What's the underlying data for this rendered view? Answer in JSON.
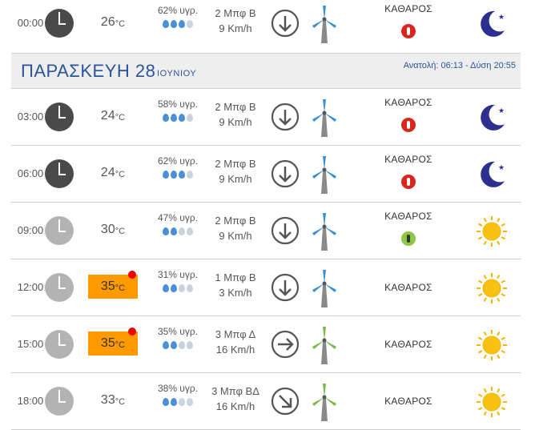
{
  "day_header": {
    "day": "ΠΑΡΑΣΚΕΥΗ 28",
    "month": "ΙΟΥΝΙΟΥ",
    "sunrise_sunset": "Ανατολή: 06:13 - Δύση 20:55"
  },
  "rows": [
    {
      "time": "00:00",
      "clock": "dark",
      "temp": "26",
      "unit": "°C",
      "hot": false,
      "humidity": "62% υγρ.",
      "drops": 3,
      "wind_force": "2 Μπφ Β",
      "wind_speed": "9 Km/h",
      "direction": "down-arrow-icon",
      "turbine": "blue",
      "condition": "ΚΑΘΑΡΟΣ",
      "mosquito": "red",
      "sky": "moon"
    },
    {
      "time": "03:00",
      "clock": "dark",
      "temp": "24",
      "unit": "°C",
      "hot": false,
      "humidity": "58% υγρ.",
      "drops": 3,
      "wind_force": "2 Μπφ Β",
      "wind_speed": "9 Km/h",
      "direction": "down-arrow-icon",
      "turbine": "blue",
      "condition": "ΚΑΘΑΡΟΣ",
      "mosquito": "red",
      "sky": "moon"
    },
    {
      "time": "06:00",
      "clock": "dark",
      "temp": "24",
      "unit": "°C",
      "hot": false,
      "humidity": "62% υγρ.",
      "drops": 3,
      "wind_force": "2 Μπφ Β",
      "wind_speed": "9 Km/h",
      "direction": "down-arrow-icon",
      "turbine": "blue",
      "condition": "ΚΑΘΑΡΟΣ",
      "mosquito": "red",
      "sky": "moon"
    },
    {
      "time": "09:00",
      "clock": "light",
      "temp": "30",
      "unit": "°C",
      "hot": false,
      "humidity": "47% υγρ.",
      "drops": 2,
      "wind_force": "2 Μπφ Β",
      "wind_speed": "9 Km/h",
      "direction": "down-arrow-icon",
      "turbine": "blue",
      "condition": "ΚΑΘΑΡΟΣ",
      "mosquito": "green",
      "sky": "sun"
    },
    {
      "time": "12:00",
      "clock": "light",
      "temp": "35",
      "unit": "°C",
      "hot": true,
      "humidity": "31% υγρ.",
      "drops": 2,
      "wind_force": "1 Μπφ Β",
      "wind_speed": "3 Km/h",
      "direction": "down-arrow-icon",
      "turbine": "blue",
      "condition": "ΚΑΘΑΡΟΣ",
      "mosquito": "",
      "sky": "sun"
    },
    {
      "time": "15:00",
      "clock": "light",
      "temp": "35",
      "unit": "°C",
      "hot": true,
      "humidity": "35% υγρ.",
      "drops": 2,
      "wind_force": "3 Μπφ Δ",
      "wind_speed": "16 Km/h",
      "direction": "right-arrow-icon",
      "turbine": "green",
      "condition": "ΚΑΘΑΡΟΣ",
      "mosquito": "",
      "sky": "sun"
    },
    {
      "time": "18:00",
      "clock": "light",
      "temp": "33",
      "unit": "°C",
      "hot": false,
      "humidity": "38% υγρ.",
      "drops": 2,
      "wind_force": "3 Μπφ ΒΔ",
      "wind_speed": "16 Km/h",
      "direction": "down-right-arrow-icon",
      "turbine": "green",
      "condition": "ΚΑΘΑΡΟΣ",
      "mosquito": "",
      "sky": "sun"
    }
  ],
  "colors": {
    "accent": "#2c5599",
    "hot": "#ff9900",
    "alert": "#ee0000",
    "turbine_blue": "#3a8fd0",
    "turbine_green": "#7ab648"
  }
}
